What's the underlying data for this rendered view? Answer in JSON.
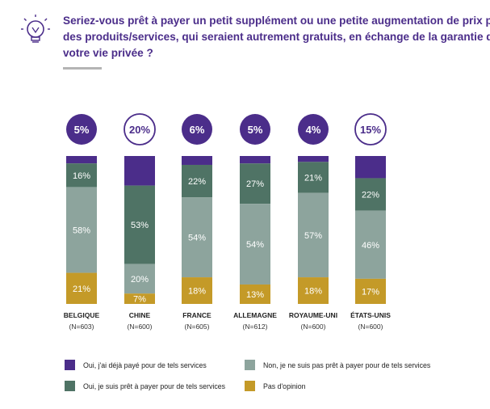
{
  "title_lines": [
    "Seriez-vous prêt à payer un petit supplément ou une petite augmentation de prix pour",
    "des produits/services, qui seraient autrement gratuits, en échange de la garantie de",
    "votre vie privée ?"
  ],
  "icon": "lightbulb-icon",
  "colors": {
    "purple": "#4b2d8a",
    "dark_green": "#4f7365",
    "gray": "#8da49d",
    "gold": "#c49a28",
    "separator": "#b4b4b4"
  },
  "chart_data": {
    "type": "bar",
    "stacked": true,
    "normalized": true,
    "categories": [
      "BELGIQUE",
      "CHINE",
      "FRANCE",
      "ALLEMAGNE",
      "ROYAUME-UNI",
      "ÉTATS-UNIS"
    ],
    "sample_sizes": [
      "(N=603)",
      "(N=600)",
      "(N=605)",
      "(N=612)",
      "(N=600)",
      "(N=600)"
    ],
    "series": [
      {
        "name": "Oui, j'ai déjà payé pour de tels services",
        "color": "#4b2d8a",
        "values": [
          5,
          20,
          6,
          5,
          4,
          15
        ],
        "labels": [
          "5%",
          "20%",
          "6%",
          "5%",
          "4%",
          "15%"
        ]
      },
      {
        "name": "Oui, je suis prêt à payer pour de tels services",
        "color": "#4f7365",
        "values": [
          16,
          53,
          22,
          27,
          21,
          22
        ],
        "labels": [
          "16%",
          "53%",
          "22%",
          "27%",
          "21%",
          "22%"
        ]
      },
      {
        "name": "Non, je ne suis pas prêt à payer pour de tels services",
        "color": "#8da49d",
        "values": [
          58,
          20,
          54,
          54,
          57,
          46
        ],
        "labels": [
          "58%",
          "20%",
          "54%",
          "54%",
          "57%",
          "46%"
        ]
      },
      {
        "name": "Pas d'opinion",
        "color": "#c49a28",
        "values": [
          21,
          7,
          18,
          13,
          18,
          17
        ],
        "labels": [
          "21%",
          "7%",
          "18%",
          "13%",
          "18%",
          "17%"
        ]
      }
    ],
    "circle_styles": [
      "filled",
      "outline",
      "filled",
      "filled",
      "filled",
      "outline"
    ],
    "legend": {
      "items": [
        "Oui, j'ai déjà payé pour de tels services",
        "Non, je ne suis pas prêt à payer pour de tels services",
        "Oui, je suis prêt à payer pour de tels services",
        "Pas d'opinion"
      ],
      "placement": "bottom"
    }
  }
}
